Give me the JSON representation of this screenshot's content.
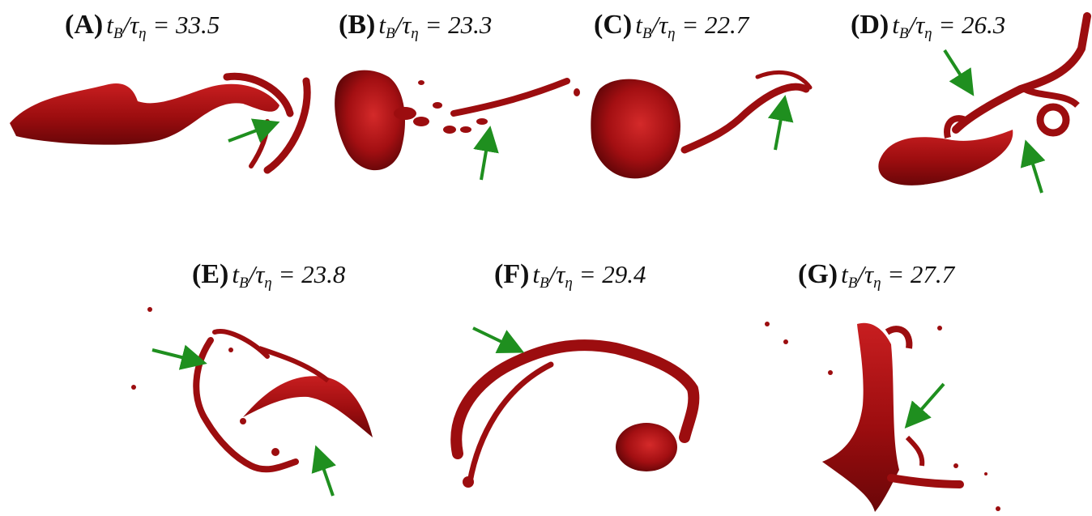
{
  "figure": {
    "panels": [
      {
        "id": "A",
        "letter": "(A)",
        "ratio_value": "33.5"
      },
      {
        "id": "B",
        "letter": "(B)",
        "ratio_value": "23.3"
      },
      {
        "id": "C",
        "letter": "(C)",
        "ratio_value": "22.7"
      },
      {
        "id": "D",
        "letter": "(D)",
        "ratio_value": "26.3"
      },
      {
        "id": "E",
        "letter": "(E)",
        "ratio_value": "23.8"
      },
      {
        "id": "F",
        "letter": "(F)",
        "ratio_value": "29.4"
      },
      {
        "id": "G",
        "letter": "(G)",
        "ratio_value": "27.7"
      }
    ],
    "symbols": {
      "t": "t",
      "t_sub": "B",
      "tau": "τ",
      "tau_sub": "η",
      "equals": " = "
    },
    "colors": {
      "droplet": "#9c0d0f",
      "droplet_dark": "#5e0507",
      "droplet_light": "#d42a2a",
      "arrow": "#1f8f1f"
    }
  }
}
